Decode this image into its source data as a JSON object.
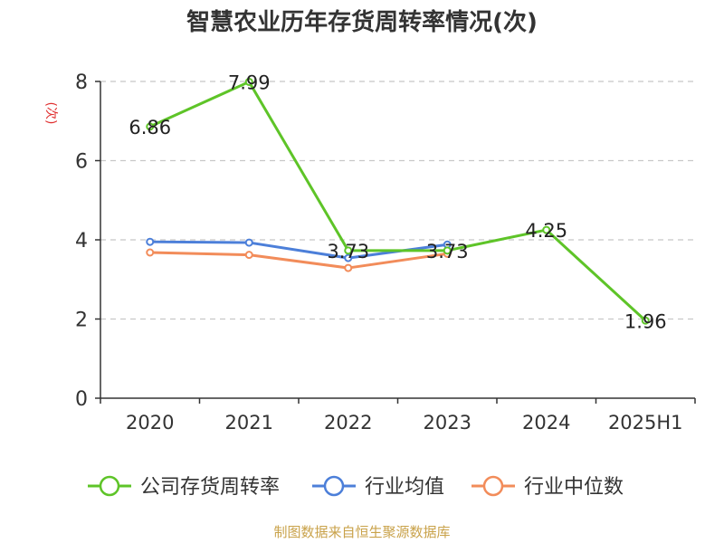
{
  "chart_data": {
    "type": "line",
    "title": "智慧农业历年存货周转率情况(次)",
    "ylabel": "(次)",
    "categories": [
      "2020",
      "2021",
      "2022",
      "2023",
      "2024",
      "2025H1"
    ],
    "ylim": [
      0,
      8
    ],
    "yticks": [
      0,
      2,
      4,
      6,
      8
    ],
    "grid": true,
    "legend_position": "bottom",
    "series": [
      {
        "name": "公司存货周转率",
        "color": "#5ec428",
        "values": [
          6.86,
          7.99,
          3.73,
          3.73,
          4.25,
          1.96
        ],
        "labels": [
          "6.86",
          "7.99",
          "3.73",
          "3.73",
          "4.25",
          "1.96"
        ]
      },
      {
        "name": "行业均值",
        "color": "#4c7fd9",
        "values": [
          3.95,
          3.93,
          3.54,
          3.88,
          null,
          null
        ]
      },
      {
        "name": "行业中位数",
        "color": "#f28c5a",
        "values": [
          3.68,
          3.62,
          3.29,
          3.65,
          null,
          null
        ]
      }
    ]
  },
  "footer": "制图数据来自恒生聚源数据库"
}
